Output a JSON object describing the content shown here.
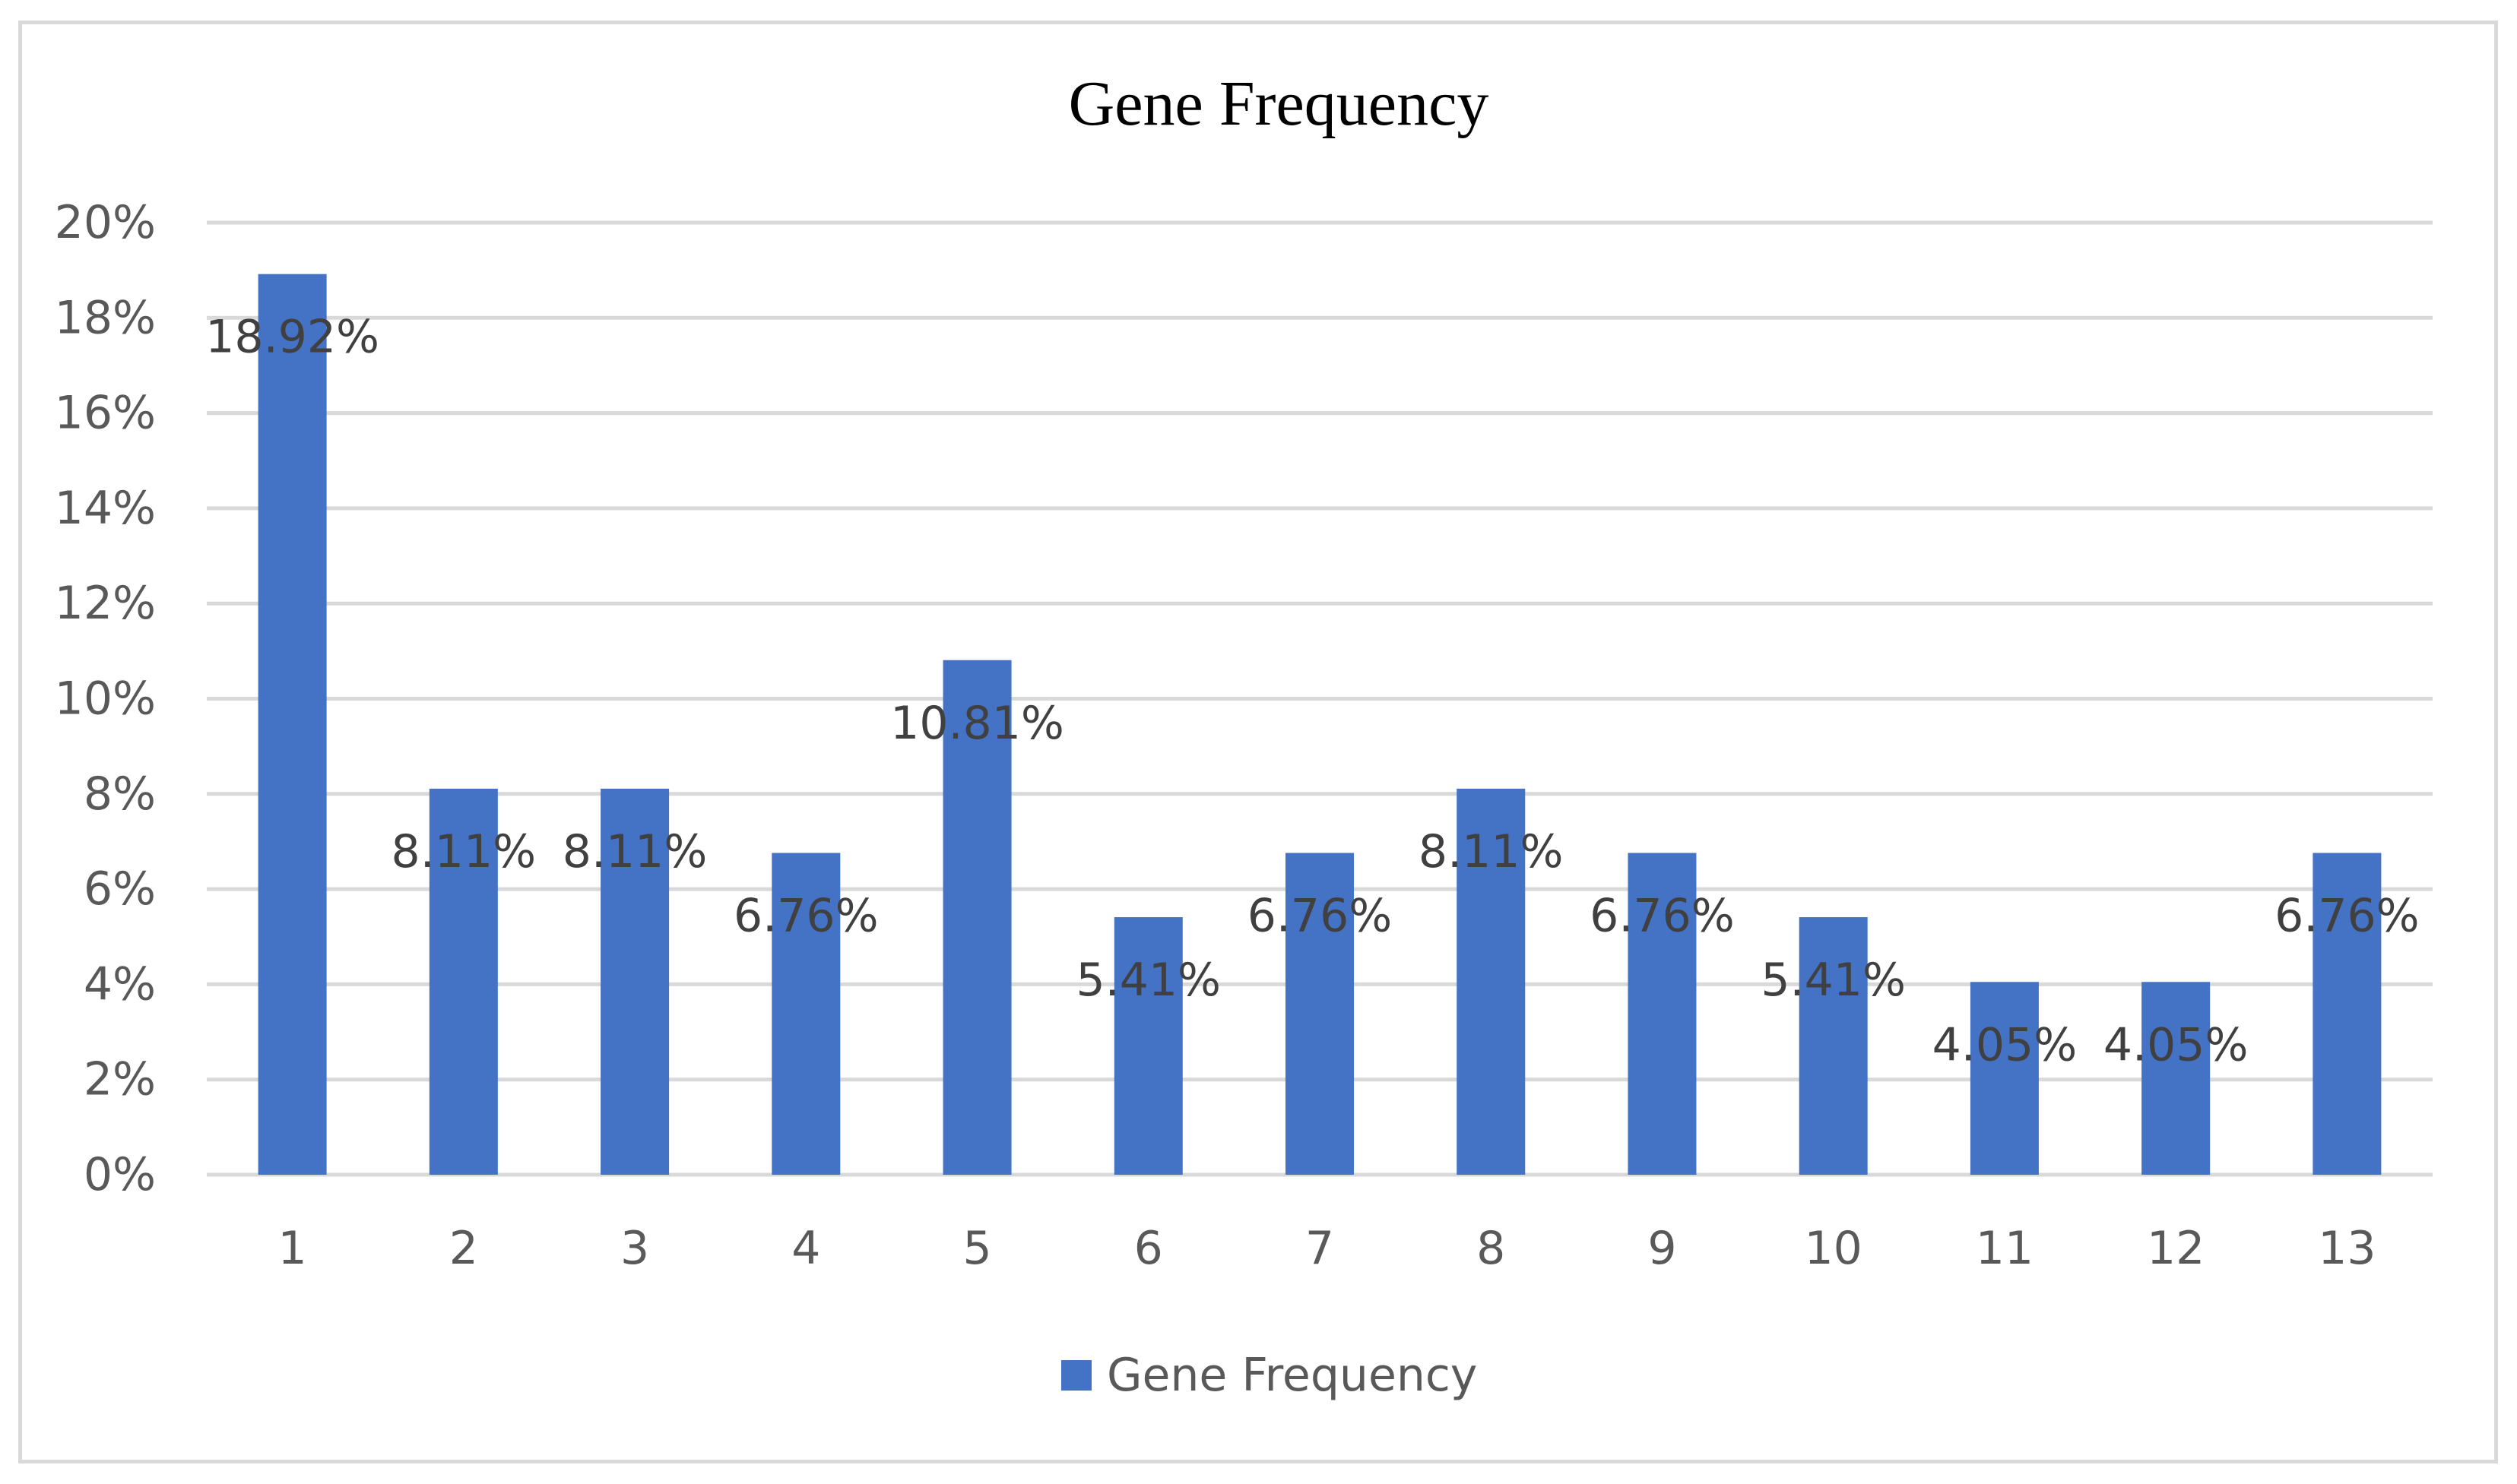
{
  "chart_data": {
    "type": "bar",
    "title": "Gene Frequency",
    "xlabel": "",
    "ylabel": "",
    "categories": [
      "1",
      "2",
      "3",
      "4",
      "5",
      "6",
      "7",
      "8",
      "9",
      "10",
      "11",
      "12",
      "13"
    ],
    "series": [
      {
        "name": "Gene Frequency",
        "color": "#4472c4",
        "values": [
          18.92,
          8.11,
          8.11,
          6.76,
          10.81,
          5.41,
          6.76,
          8.11,
          6.76,
          5.41,
          4.05,
          4.05,
          6.76
        ],
        "labels": [
          "18.92%",
          "8.11%",
          "8.11%",
          "6.76%",
          "10.81%",
          "5.41%",
          "6.76%",
          "8.11%",
          "6.76%",
          "5.41%",
          "4.05%",
          "4.05%",
          "6.76%"
        ]
      }
    ],
    "ylim": [
      0,
      20
    ],
    "yticks": [
      0,
      2,
      4,
      6,
      8,
      10,
      12,
      14,
      16,
      18,
      20
    ],
    "ytick_labels": [
      "0%",
      "2%",
      "4%",
      "6%",
      "8%",
      "10%",
      "12%",
      "14%",
      "16%",
      "18%",
      "20%"
    ],
    "grid": true,
    "legend": {
      "position": "bottom",
      "entries": [
        "Gene Frequency"
      ]
    },
    "colors": {
      "bar": "#4472c4",
      "grid": "#d9d9d9",
      "border": "#d9d9d9"
    }
  }
}
